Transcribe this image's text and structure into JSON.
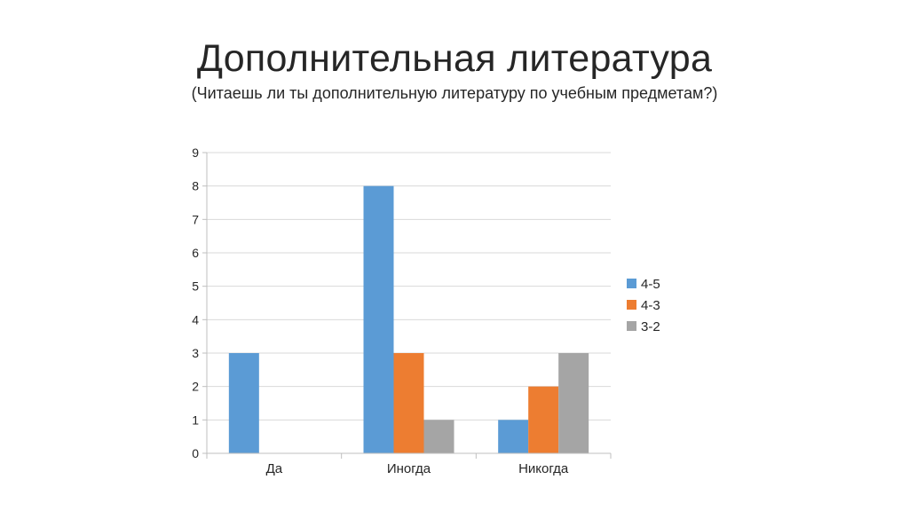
{
  "slide": {
    "title": "Дополнительная литература",
    "subtitle": "(Читаешь ли ты дополнительную литературу по учебным предметам?)"
  },
  "chart_data": {
    "type": "bar",
    "categories": [
      "Да",
      "Иногда",
      "Никогда"
    ],
    "series": [
      {
        "name": "4-5",
        "values": [
          3,
          8,
          1
        ],
        "color": "#5b9bd5"
      },
      {
        "name": "4-3",
        "values": [
          0,
          3,
          2
        ],
        "color": "#ed7d31"
      },
      {
        "name": "3-2",
        "values": [
          0,
          1,
          3
        ],
        "color": "#a5a5a5"
      }
    ],
    "ylim": [
      0,
      9
    ],
    "yticks": [
      "0",
      "1",
      "2",
      "3",
      "4",
      "5",
      "6",
      "7",
      "8",
      "9"
    ],
    "grid": true,
    "legend_position": "right"
  }
}
